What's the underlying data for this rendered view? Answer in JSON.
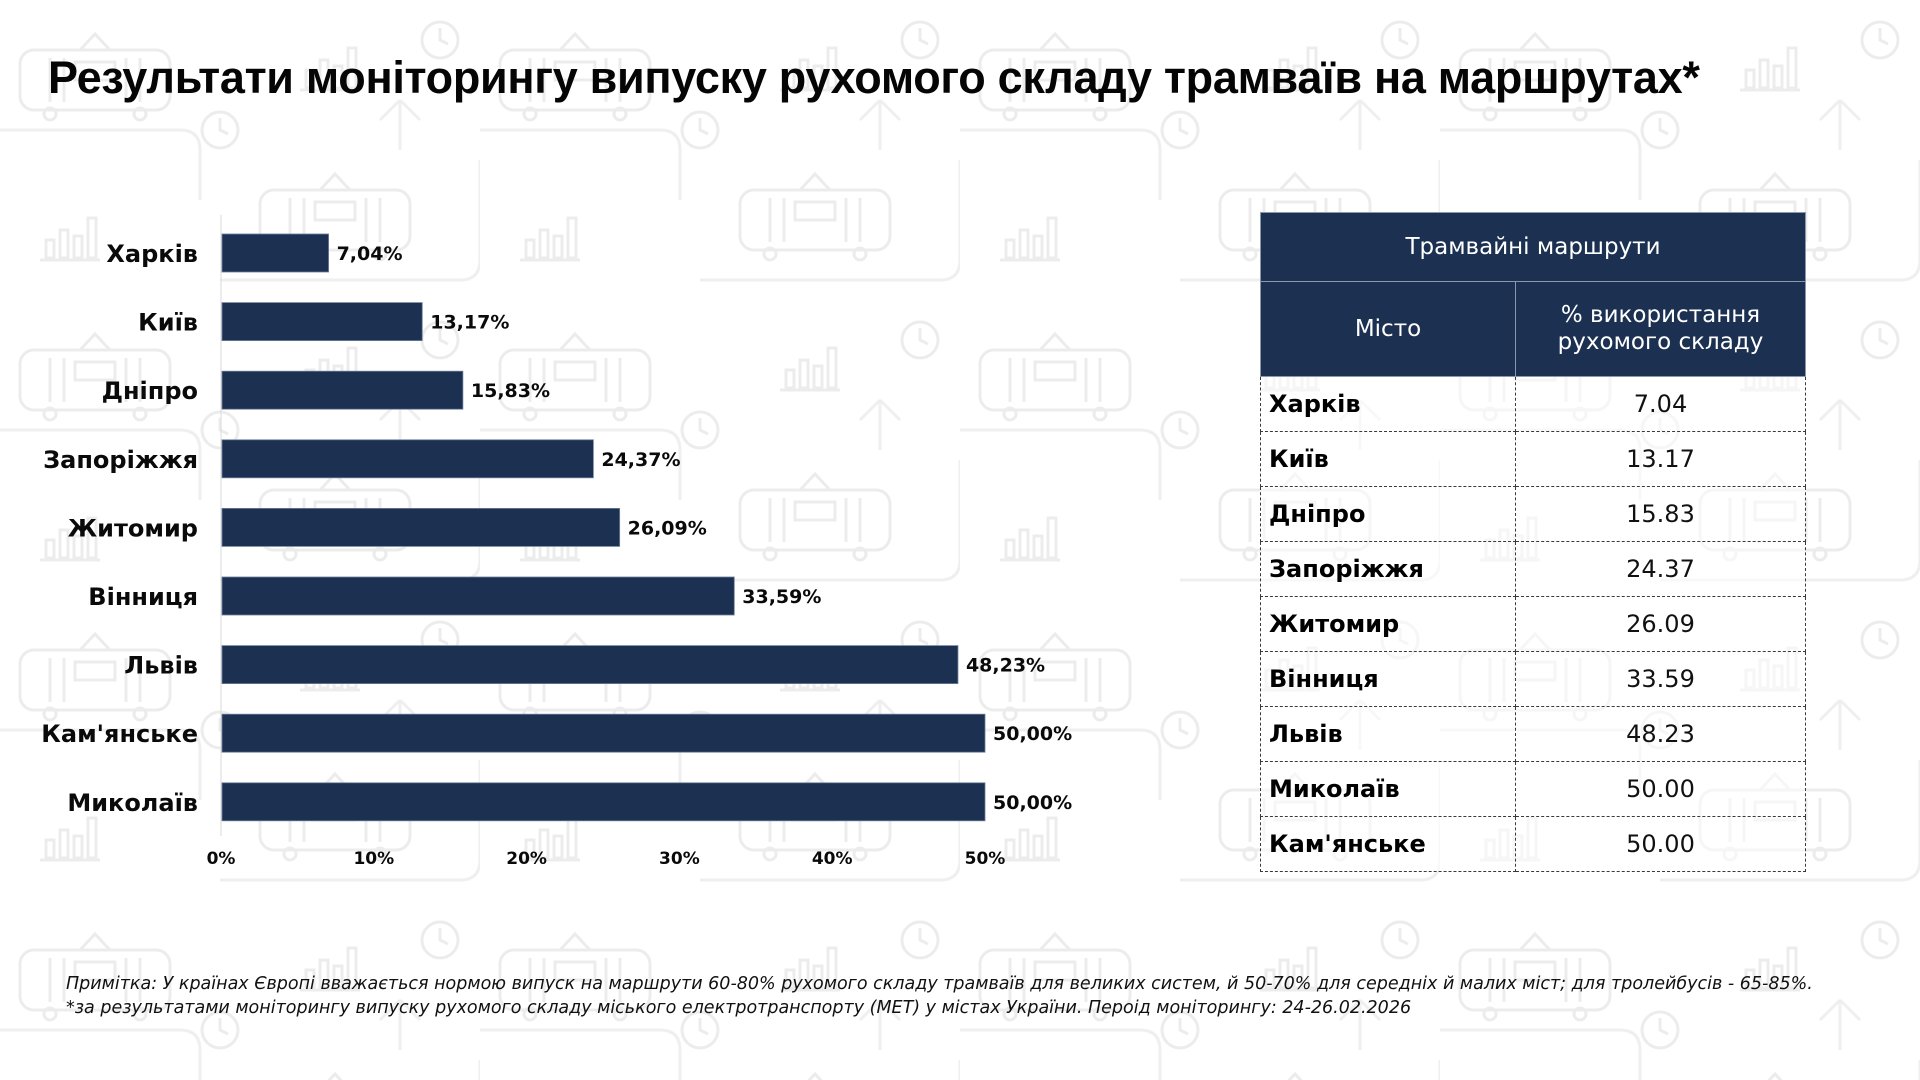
{
  "title": "Результати моніторингу випуску рухомого складу трамваїв на маршрутах*",
  "colors": {
    "bar": "#1c3151",
    "table_header": "#1c3151",
    "table_header_text": "#ffffff",
    "background": "#ffffff",
    "pattern": "#efefef"
  },
  "chart_data": {
    "type": "bar",
    "orientation": "horizontal",
    "title": "",
    "xlabel": "",
    "ylabel": "",
    "categories": [
      "Харків",
      "Київ",
      "Дніпро",
      "Запоріжжя",
      "Житомир",
      "Вінниця",
      "Львів",
      "Кам'янське",
      "Миколаїв"
    ],
    "values": [
      7.04,
      13.17,
      15.83,
      24.37,
      26.09,
      33.59,
      48.23,
      50.0,
      50.0
    ],
    "data_labels": [
      "7,04%",
      "13,17%",
      "15,83%",
      "24,37%",
      "26,09%",
      "33,59%",
      "48,23%",
      "50,00%",
      "50,00%"
    ],
    "xlim": [
      0,
      50
    ],
    "x_ticks": [
      0,
      10,
      20,
      30,
      40,
      50
    ],
    "x_tick_labels": [
      "0%",
      "10%",
      "20%",
      "30%",
      "40%",
      "50%"
    ],
    "grid": false,
    "legend": "none"
  },
  "table": {
    "title": "Трамвайні маршрути",
    "columns": [
      "Місто",
      "% використання рухомого складу"
    ],
    "column_lines": [
      [
        "Місто"
      ],
      [
        "% використання",
        "рухомого складу"
      ]
    ],
    "rows": [
      {
        "city": "Харків",
        "value": "7.04"
      },
      {
        "city": "Київ",
        "value": "13.17"
      },
      {
        "city": "Дніпро",
        "value": "15.83"
      },
      {
        "city": "Запоріжжя",
        "value": "24.37"
      },
      {
        "city": "Житомир",
        "value": "26.09"
      },
      {
        "city": "Вінниця",
        "value": "33.59"
      },
      {
        "city": "Львів",
        "value": "48.23"
      },
      {
        "city": "Миколаїв",
        "value": "50.00"
      },
      {
        "city": "Кам'янське",
        "value": "50.00"
      }
    ]
  },
  "footnotes": {
    "note": "Примітка: У країнах Європі вважається нормою випуск на маршрути 60-80% рухомого складу трамваїв для великих систем, й 50-70% для середніх й малих міст; для тролейбусів - 65-85%.",
    "source": "*за результатами моніторингу випуску рухомого складу міського електротранспорту (МЕТ) у містах України. Пероід моніторингу: 24-26.02.2026"
  }
}
